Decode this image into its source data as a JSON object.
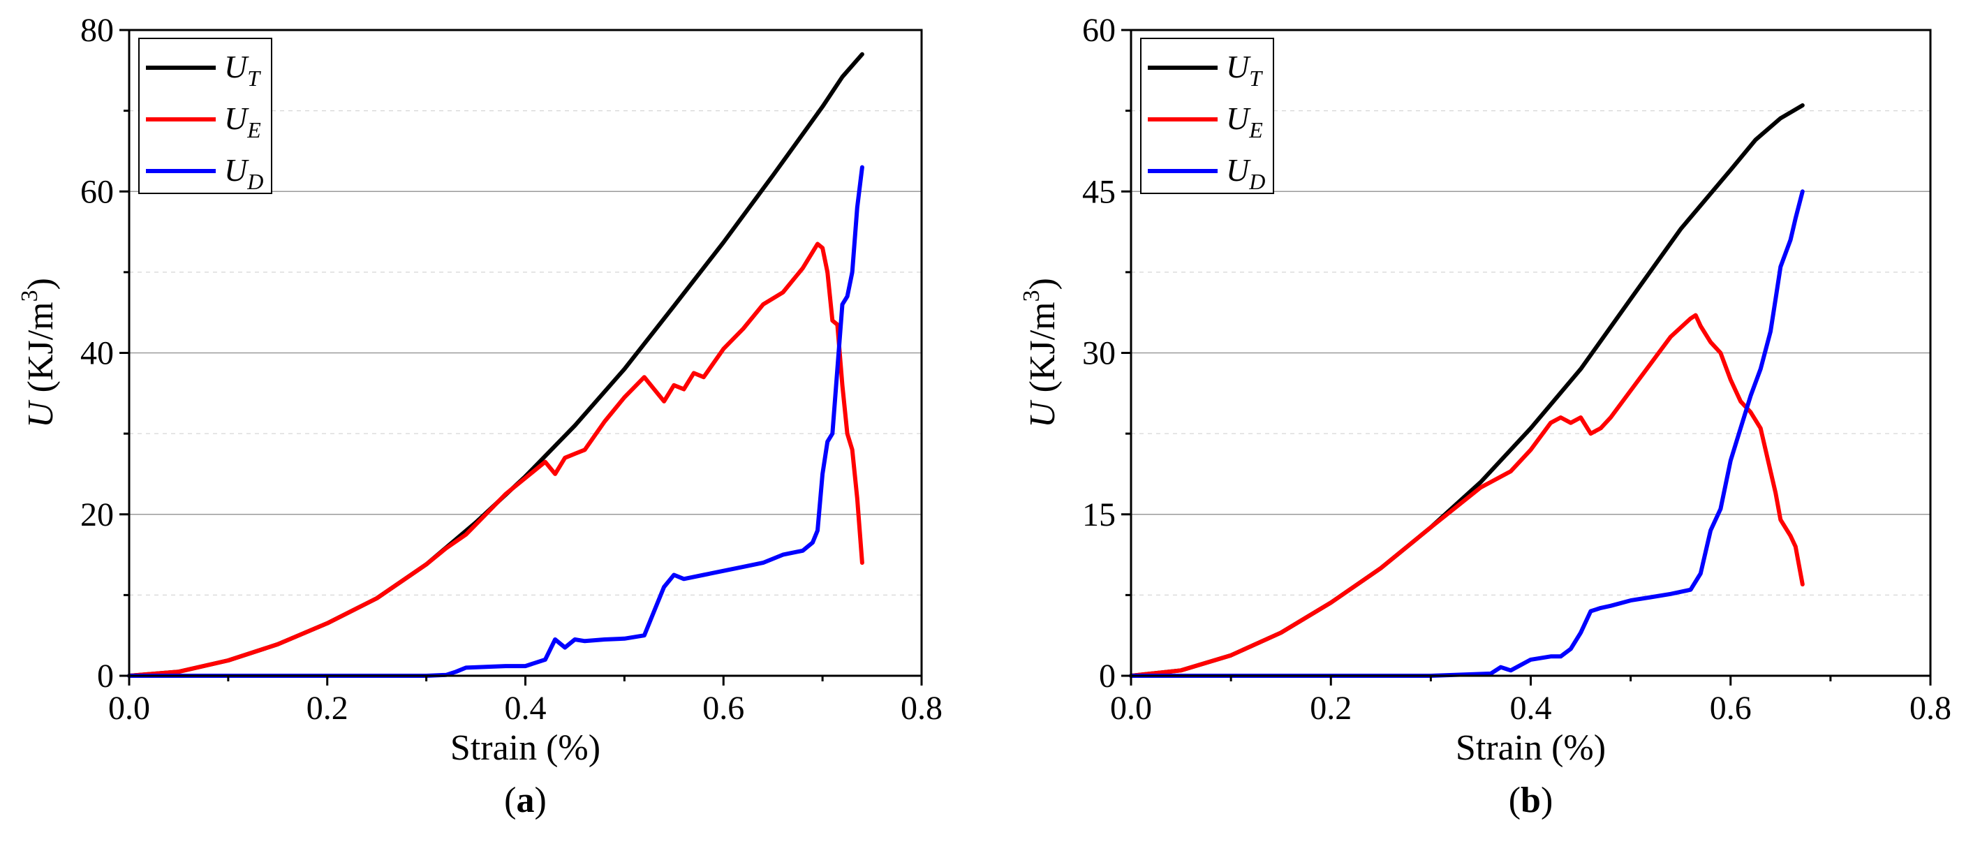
{
  "chart_data": [
    {
      "panel_label": "a",
      "type": "line",
      "xlabel": "Strain (%)",
      "ylabel": "U (KJ/m3)",
      "xlim": [
        0,
        0.8
      ],
      "ylim": [
        0,
        80
      ],
      "xticks": [
        0.0,
        0.2,
        0.4,
        0.6,
        0.8
      ],
      "xtick_labels": [
        "0.0",
        "0.2",
        "0.4",
        "0.6",
        "0.8"
      ],
      "yticks": [
        0,
        20,
        40,
        60,
        80
      ],
      "ytick_labels": [
        "0",
        "20",
        "40",
        "60",
        "80"
      ],
      "grid": true,
      "legend_position": "top-left",
      "series": [
        {
          "name": "UT",
          "base": "U",
          "sub": "T",
          "color": "#000000",
          "x": [
            0,
            0.05,
            0.1,
            0.15,
            0.2,
            0.25,
            0.3,
            0.35,
            0.4,
            0.45,
            0.5,
            0.55,
            0.6,
            0.65,
            0.7,
            0.72,
            0.74
          ],
          "y": [
            0,
            0.5,
            1.9,
            3.9,
            6.5,
            9.6,
            13.8,
            19.0,
            24.7,
            31.0,
            38.0,
            45.8,
            53.7,
            62.0,
            70.5,
            74.2,
            77.0
          ]
        },
        {
          "name": "UE",
          "base": "U",
          "sub": "E",
          "color": "#ff0000",
          "x": [
            0,
            0.05,
            0.1,
            0.15,
            0.2,
            0.25,
            0.3,
            0.32,
            0.34,
            0.36,
            0.38,
            0.4,
            0.42,
            0.43,
            0.44,
            0.45,
            0.46,
            0.48,
            0.5,
            0.52,
            0.53,
            0.54,
            0.55,
            0.56,
            0.57,
            0.58,
            0.6,
            0.62,
            0.64,
            0.66,
            0.68,
            0.695,
            0.7,
            0.705,
            0.71,
            0.715,
            0.72,
            0.725,
            0.73,
            0.735,
            0.74
          ],
          "y": [
            0,
            0.5,
            1.9,
            3.9,
            6.5,
            9.6,
            13.8,
            15.8,
            17.5,
            20.0,
            22.5,
            24.5,
            26.5,
            25.0,
            27.0,
            27.5,
            28.0,
            31.5,
            34.5,
            37.0,
            35.5,
            34.0,
            36.0,
            35.5,
            37.5,
            37.0,
            40.5,
            43.0,
            46.0,
            47.5,
            50.5,
            53.5,
            53.0,
            50.0,
            44.0,
            43.5,
            36.0,
            30.0,
            28.0,
            22.0,
            14.0
          ]
        },
        {
          "name": "UD",
          "base": "U",
          "sub": "D",
          "color": "#0000ff",
          "x": [
            0,
            0.1,
            0.2,
            0.3,
            0.32,
            0.33,
            0.34,
            0.36,
            0.38,
            0.4,
            0.42,
            0.43,
            0.44,
            0.45,
            0.46,
            0.48,
            0.5,
            0.52,
            0.53,
            0.54,
            0.55,
            0.56,
            0.58,
            0.6,
            0.62,
            0.64,
            0.66,
            0.68,
            0.69,
            0.695,
            0.7,
            0.705,
            0.71,
            0.715,
            0.72,
            0.725,
            0.73,
            0.735,
            0.74
          ],
          "y": [
            0,
            0,
            0,
            0,
            0.1,
            0.5,
            1.0,
            1.1,
            1.2,
            1.2,
            2.0,
            4.5,
            3.5,
            4.5,
            4.3,
            4.5,
            4.6,
            5.0,
            8.0,
            11.0,
            12.5,
            12.0,
            12.5,
            13.0,
            13.5,
            14.0,
            15.0,
            15.5,
            16.5,
            18.0,
            25.0,
            29.0,
            30.0,
            38.0,
            46.0,
            47.0,
            50.0,
            58.0,
            63.0
          ]
        }
      ]
    },
    {
      "panel_label": "b",
      "type": "line",
      "xlabel": "Strain (%)",
      "ylabel": "U (KJ/m3)",
      "xlim": [
        0,
        0.8
      ],
      "ylim": [
        0,
        60
      ],
      "xticks": [
        0.0,
        0.2,
        0.4,
        0.6,
        0.8
      ],
      "xtick_labels": [
        "0.0",
        "0.2",
        "0.4",
        "0.6",
        "0.8"
      ],
      "yticks": [
        0,
        15,
        30,
        45,
        60
      ],
      "ytick_labels": [
        "0",
        "15",
        "30",
        "45",
        "60"
      ],
      "grid": true,
      "legend_position": "top-left",
      "series": [
        {
          "name": "UT",
          "base": "U",
          "sub": "T",
          "color": "#000000",
          "x": [
            0,
            0.05,
            0.1,
            0.15,
            0.2,
            0.25,
            0.3,
            0.35,
            0.4,
            0.45,
            0.5,
            0.55,
            0.6,
            0.625,
            0.65,
            0.672
          ],
          "y": [
            0,
            0.5,
            1.9,
            4.0,
            6.8,
            10.0,
            13.8,
            18.0,
            23.0,
            28.5,
            35.0,
            41.5,
            47.0,
            49.8,
            51.8,
            53.0
          ]
        },
        {
          "name": "UE",
          "base": "U",
          "sub": "E",
          "color": "#ff0000",
          "x": [
            0,
            0.05,
            0.1,
            0.15,
            0.2,
            0.25,
            0.3,
            0.35,
            0.36,
            0.38,
            0.4,
            0.42,
            0.43,
            0.44,
            0.45,
            0.46,
            0.47,
            0.48,
            0.5,
            0.52,
            0.54,
            0.56,
            0.565,
            0.57,
            0.58,
            0.59,
            0.6,
            0.61,
            0.62,
            0.63,
            0.64,
            0.645,
            0.65,
            0.66,
            0.665,
            0.672
          ],
          "y": [
            0,
            0.5,
            1.9,
            4.0,
            6.8,
            10.0,
            13.8,
            17.5,
            18.0,
            19.0,
            21.0,
            23.5,
            24.0,
            23.5,
            24.0,
            22.5,
            23.0,
            24.0,
            26.5,
            29.0,
            31.5,
            33.2,
            33.5,
            32.5,
            31.0,
            30.0,
            27.5,
            25.5,
            24.5,
            23.0,
            19.0,
            17.0,
            14.5,
            13.0,
            12.0,
            8.5
          ]
        },
        {
          "name": "UD",
          "base": "U",
          "sub": "D",
          "color": "#0000ff",
          "x": [
            0,
            0.1,
            0.2,
            0.3,
            0.36,
            0.37,
            0.38,
            0.4,
            0.42,
            0.43,
            0.44,
            0.45,
            0.46,
            0.47,
            0.48,
            0.5,
            0.52,
            0.54,
            0.56,
            0.57,
            0.58,
            0.59,
            0.6,
            0.61,
            0.62,
            0.63,
            0.64,
            0.645,
            0.65,
            0.66,
            0.665,
            0.672
          ],
          "y": [
            0,
            0,
            0,
            0,
            0.2,
            0.8,
            0.5,
            1.5,
            1.8,
            1.8,
            2.5,
            4.0,
            6.0,
            6.3,
            6.5,
            7.0,
            7.3,
            7.6,
            8.0,
            9.5,
            13.5,
            15.5,
            20.0,
            23.0,
            26.0,
            28.5,
            32.0,
            35.0,
            38.0,
            40.5,
            42.5,
            45.0
          ]
        }
      ]
    }
  ]
}
